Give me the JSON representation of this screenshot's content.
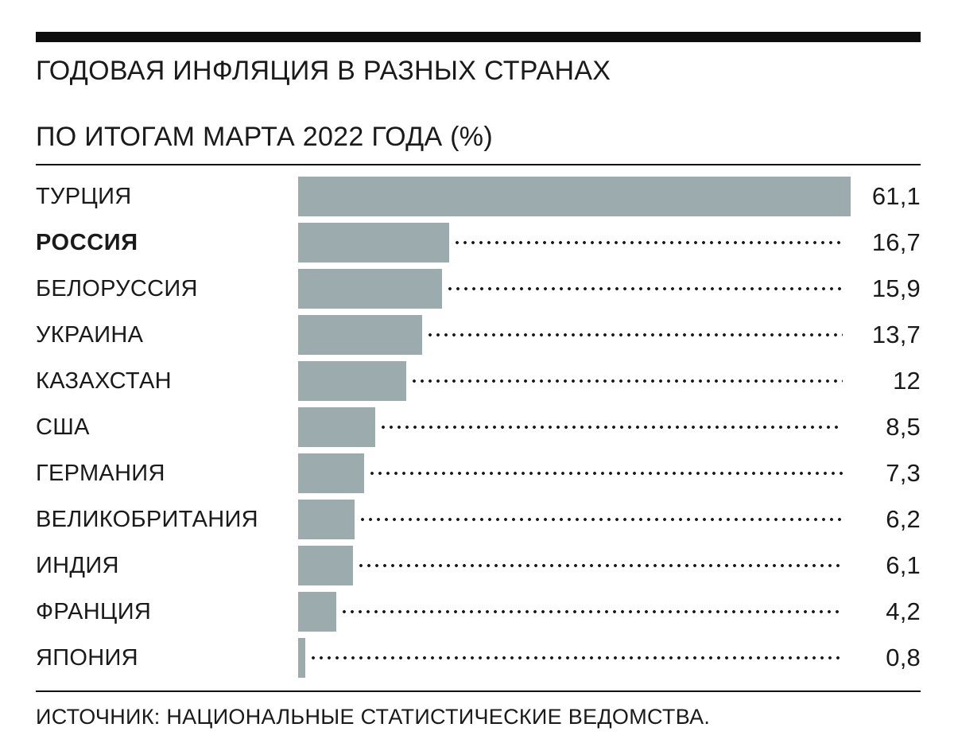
{
  "page": {
    "title_line1": "ГОДОВАЯ ИНФЛЯЦИЯ В РАЗНЫХ СТРАНАХ",
    "title_line2": "ПО ИТОГАМ МАРТА 2022 ГОДА (%)",
    "source": "ИСТОЧНИК: НАЦИОНАЛЬНЫЕ СТАТИСТИЧЕСКИЕ ВЕДОМСТВА."
  },
  "chart_data": {
    "type": "bar",
    "orientation": "horizontal",
    "title": "ГОДОВАЯ ИНФЛЯЦИЯ В РАЗНЫХ СТРАНАХ ПО ИТОГАМ МАРТА 2022 ГОДА (%)",
    "categories": [
      "ТУРЦИЯ",
      "РОССИЯ",
      "БЕЛОРУССИЯ",
      "УКРАИНА",
      "КАЗАХСТАН",
      "США",
      "ГЕРМАНИЯ",
      "ВЕЛИКОБРИТАНИЯ",
      "ИНДИЯ",
      "ФРАНЦИЯ",
      "ЯПОНИЯ"
    ],
    "values": [
      61.1,
      16.7,
      15.9,
      13.7,
      12,
      8.5,
      7.3,
      6.2,
      6.1,
      4.2,
      0.8
    ],
    "value_labels": [
      "61,1",
      "16,7",
      "15,9",
      "13,7",
      "12",
      "8,5",
      "7,3",
      "6,2",
      "6,1",
      "4,2",
      "0,8"
    ],
    "highlight_index": 1,
    "xlim": [
      0,
      61.1
    ],
    "grid": false,
    "legend": "none",
    "bar_color": "#9cacae",
    "source": "ИСТОЧНИК: НАЦИОНАЛЬНЫЕ СТАТИСТИЧЕСКИЕ ВЕДОМСТВА."
  }
}
